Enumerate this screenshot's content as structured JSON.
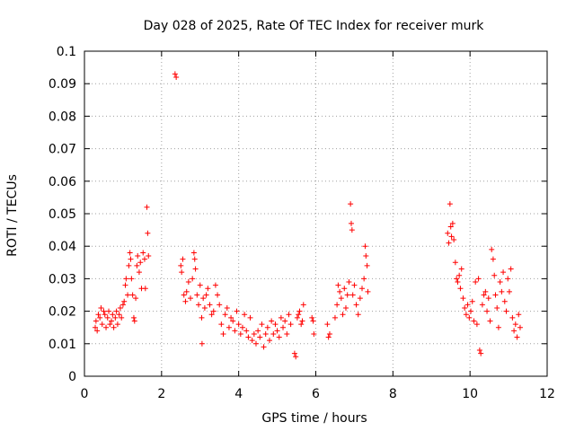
{
  "chart_data": {
    "type": "scatter",
    "title": "Day 028 of 2025, Rate Of TEC Index for receiver murk",
    "xlabel": "GPS time / hours",
    "ylabel": "ROTI / TECUs",
    "xlim": [
      0,
      12
    ],
    "ylim": [
      0,
      0.1
    ],
    "x_ticks": [
      "0",
      "2",
      "4",
      "6",
      "8",
      "10",
      "12"
    ],
    "y_ticks": [
      "0",
      "0.01",
      "0.02",
      "0.03",
      "0.04",
      "0.05",
      "0.06",
      "0.07",
      "0.08",
      "0.09",
      "0.1"
    ],
    "grid": true,
    "marker": "+",
    "color": "#ff0000",
    "series": [
      {
        "name": "ROTI",
        "points": [
          [
            0.28,
            0.015
          ],
          [
            0.3,
            0.017
          ],
          [
            0.33,
            0.014
          ],
          [
            0.36,
            0.019
          ],
          [
            0.4,
            0.018
          ],
          [
            0.43,
            0.021
          ],
          [
            0.46,
            0.016
          ],
          [
            0.5,
            0.02
          ],
          [
            0.53,
            0.019
          ],
          [
            0.56,
            0.015
          ],
          [
            0.6,
            0.018
          ],
          [
            0.63,
            0.02
          ],
          [
            0.66,
            0.016
          ],
          [
            0.7,
            0.017
          ],
          [
            0.73,
            0.019
          ],
          [
            0.76,
            0.015
          ],
          [
            0.8,
            0.018
          ],
          [
            0.83,
            0.02
          ],
          [
            0.86,
            0.016
          ],
          [
            0.9,
            0.019
          ],
          [
            0.93,
            0.021
          ],
          [
            0.96,
            0.018
          ],
          [
            1.0,
            0.022
          ],
          [
            1.03,
            0.023
          ],
          [
            1.06,
            0.028
          ],
          [
            1.08,
            0.03
          ],
          [
            1.12,
            0.025
          ],
          [
            1.15,
            0.034
          ],
          [
            1.18,
            0.038
          ],
          [
            1.2,
            0.036
          ],
          [
            1.22,
            0.03
          ],
          [
            1.25,
            0.025
          ],
          [
            1.28,
            0.018
          ],
          [
            1.3,
            0.017
          ],
          [
            1.33,
            0.024
          ],
          [
            1.36,
            0.034
          ],
          [
            1.38,
            0.037
          ],
          [
            1.42,
            0.032
          ],
          [
            1.45,
            0.035
          ],
          [
            1.48,
            0.027
          ],
          [
            1.52,
            0.038
          ],
          [
            1.56,
            0.036
          ],
          [
            1.58,
            0.027
          ],
          [
            1.62,
            0.052
          ],
          [
            1.64,
            0.044
          ],
          [
            1.66,
            0.037
          ],
          [
            2.35,
            0.093
          ],
          [
            2.38,
            0.092
          ],
          [
            2.5,
            0.034
          ],
          [
            2.52,
            0.032
          ],
          [
            2.55,
            0.036
          ],
          [
            2.58,
            0.025
          ],
          [
            2.62,
            0.023
          ],
          [
            2.65,
            0.026
          ],
          [
            2.7,
            0.029
          ],
          [
            2.75,
            0.024
          ],
          [
            2.8,
            0.03
          ],
          [
            2.84,
            0.038
          ],
          [
            2.86,
            0.036
          ],
          [
            2.88,
            0.033
          ],
          [
            2.92,
            0.025
          ],
          [
            2.96,
            0.022
          ],
          [
            3.0,
            0.028
          ],
          [
            3.04,
            0.018
          ],
          [
            3.05,
            0.01
          ],
          [
            3.08,
            0.024
          ],
          [
            3.12,
            0.021
          ],
          [
            3.16,
            0.025
          ],
          [
            3.2,
            0.027
          ],
          [
            3.25,
            0.022
          ],
          [
            3.3,
            0.019
          ],
          [
            3.35,
            0.02
          ],
          [
            3.4,
            0.028
          ],
          [
            3.45,
            0.025
          ],
          [
            3.5,
            0.022
          ],
          [
            3.55,
            0.016
          ],
          [
            3.6,
            0.013
          ],
          [
            3.65,
            0.019
          ],
          [
            3.7,
            0.021
          ],
          [
            3.75,
            0.015
          ],
          [
            3.8,
            0.018
          ],
          [
            3.85,
            0.017
          ],
          [
            3.9,
            0.014
          ],
          [
            3.95,
            0.02
          ],
          [
            4.0,
            0.016
          ],
          [
            4.05,
            0.013
          ],
          [
            4.1,
            0.015
          ],
          [
            4.15,
            0.019
          ],
          [
            4.2,
            0.014
          ],
          [
            4.25,
            0.012
          ],
          [
            4.3,
            0.018
          ],
          [
            4.35,
            0.011
          ],
          [
            4.4,
            0.013
          ],
          [
            4.45,
            0.01
          ],
          [
            4.5,
            0.014
          ],
          [
            4.55,
            0.012
          ],
          [
            4.6,
            0.016
          ],
          [
            4.65,
            0.009
          ],
          [
            4.7,
            0.013
          ],
          [
            4.75,
            0.015
          ],
          [
            4.8,
            0.011
          ],
          [
            4.85,
            0.017
          ],
          [
            4.9,
            0.013
          ],
          [
            4.95,
            0.016
          ],
          [
            5.0,
            0.014
          ],
          [
            5.05,
            0.012
          ],
          [
            5.1,
            0.018
          ],
          [
            5.15,
            0.015
          ],
          [
            5.2,
            0.017
          ],
          [
            5.25,
            0.013
          ],
          [
            5.3,
            0.019
          ],
          [
            5.35,
            0.016
          ],
          [
            5.45,
            0.007
          ],
          [
            5.48,
            0.006
          ],
          [
            5.52,
            0.018
          ],
          [
            5.55,
            0.019
          ],
          [
            5.58,
            0.02
          ],
          [
            5.62,
            0.016
          ],
          [
            5.65,
            0.017
          ],
          [
            5.68,
            0.022
          ],
          [
            5.9,
            0.018
          ],
          [
            5.93,
            0.017
          ],
          [
            5.95,
            0.013
          ],
          [
            6.3,
            0.016
          ],
          [
            6.33,
            0.012
          ],
          [
            6.36,
            0.013
          ],
          [
            6.5,
            0.018
          ],
          [
            6.55,
            0.022
          ],
          [
            6.58,
            0.028
          ],
          [
            6.62,
            0.026
          ],
          [
            6.66,
            0.024
          ],
          [
            6.7,
            0.019
          ],
          [
            6.74,
            0.027
          ],
          [
            6.78,
            0.021
          ],
          [
            6.82,
            0.025
          ],
          [
            6.86,
            0.029
          ],
          [
            6.9,
            0.053
          ],
          [
            6.92,
            0.047
          ],
          [
            6.94,
            0.045
          ],
          [
            6.96,
            0.025
          ],
          [
            7.0,
            0.028
          ],
          [
            7.05,
            0.022
          ],
          [
            7.1,
            0.019
          ],
          [
            7.15,
            0.024
          ],
          [
            7.2,
            0.027
          ],
          [
            7.25,
            0.03
          ],
          [
            7.28,
            0.04
          ],
          [
            7.3,
            0.037
          ],
          [
            7.33,
            0.034
          ],
          [
            7.35,
            0.026
          ],
          [
            9.42,
            0.044
          ],
          [
            9.45,
            0.041
          ],
          [
            9.48,
            0.053
          ],
          [
            9.5,
            0.046
          ],
          [
            9.52,
            0.043
          ],
          [
            9.55,
            0.047
          ],
          [
            9.58,
            0.042
          ],
          [
            9.62,
            0.035
          ],
          [
            9.65,
            0.03
          ],
          [
            9.68,
            0.029
          ],
          [
            9.72,
            0.031
          ],
          [
            9.75,
            0.027
          ],
          [
            9.78,
            0.033
          ],
          [
            9.82,
            0.024
          ],
          [
            9.86,
            0.021
          ],
          [
            9.9,
            0.019
          ],
          [
            9.94,
            0.022
          ],
          [
            9.98,
            0.018
          ],
          [
            10.02,
            0.02
          ],
          [
            10.06,
            0.023
          ],
          [
            10.1,
            0.017
          ],
          [
            10.14,
            0.029
          ],
          [
            10.18,
            0.016
          ],
          [
            10.22,
            0.03
          ],
          [
            10.25,
            0.008
          ],
          [
            10.28,
            0.007
          ],
          [
            10.32,
            0.022
          ],
          [
            10.36,
            0.025
          ],
          [
            10.4,
            0.026
          ],
          [
            10.44,
            0.02
          ],
          [
            10.48,
            0.024
          ],
          [
            10.52,
            0.017
          ],
          [
            10.56,
            0.039
          ],
          [
            10.6,
            0.036
          ],
          [
            10.63,
            0.031
          ],
          [
            10.66,
            0.025
          ],
          [
            10.7,
            0.021
          ],
          [
            10.74,
            0.015
          ],
          [
            10.78,
            0.029
          ],
          [
            10.82,
            0.026
          ],
          [
            10.86,
            0.032
          ],
          [
            10.9,
            0.023
          ],
          [
            10.94,
            0.02
          ],
          [
            10.98,
            0.03
          ],
          [
            11.02,
            0.026
          ],
          [
            11.06,
            0.033
          ],
          [
            11.1,
            0.018
          ],
          [
            11.14,
            0.014
          ],
          [
            11.18,
            0.016
          ],
          [
            11.22,
            0.012
          ],
          [
            11.26,
            0.019
          ],
          [
            11.3,
            0.015
          ]
        ]
      }
    ]
  }
}
